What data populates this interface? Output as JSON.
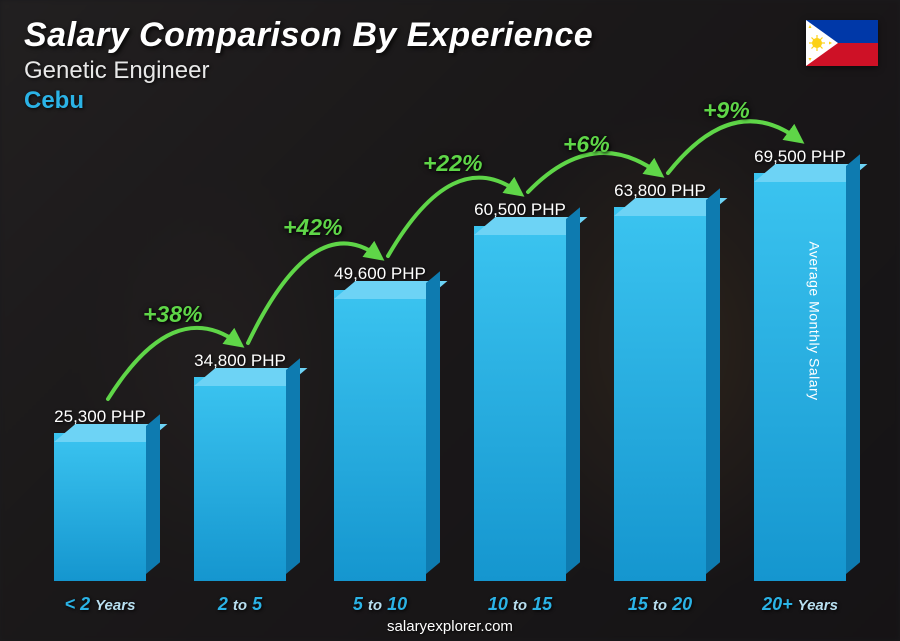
{
  "header": {
    "title": "Salary Comparison By Experience",
    "subtitle": "Genetic Engineer",
    "location": "Cebu"
  },
  "y_axis_label": "Average Monthly Salary",
  "footer": "salaryexplorer.com",
  "chart": {
    "type": "bar",
    "background_overlay": "rgba(15,15,20,0.55)",
    "bar_front_gradient": [
      "#3bc4f0",
      "#1596cf"
    ],
    "bar_top_color": "#6dd3f5",
    "bar_side_color": "#0e7bb0",
    "value_label_color": "#ffffff",
    "category_color": "#2bb3e6",
    "yaxis_max": 75000,
    "bars": [
      {
        "category_prefix": "< 2",
        "category_suffix": "Years",
        "value": 25300,
        "value_label": "25,300 PHP"
      },
      {
        "category_prefix": "2",
        "category_mid": "to",
        "category_suffix": "5",
        "value": 34800,
        "value_label": "34,800 PHP"
      },
      {
        "category_prefix": "5",
        "category_mid": "to",
        "category_suffix": "10",
        "value": 49600,
        "value_label": "49,600 PHP"
      },
      {
        "category_prefix": "10",
        "category_mid": "to",
        "category_suffix": "15",
        "value": 60500,
        "value_label": "60,500 PHP"
      },
      {
        "category_prefix": "15",
        "category_mid": "to",
        "category_suffix": "20",
        "value": 63800,
        "value_label": "63,800 PHP"
      },
      {
        "category_prefix": "20+",
        "category_suffix": "Years",
        "value": 69500,
        "value_label": "69,500 PHP"
      }
    ],
    "arcs": [
      {
        "from": 0,
        "to": 1,
        "pct": "+38%",
        "color": "#5fd648"
      },
      {
        "from": 1,
        "to": 2,
        "pct": "+42%",
        "color": "#5fd648"
      },
      {
        "from": 2,
        "to": 3,
        "pct": "+22%",
        "color": "#5fd648"
      },
      {
        "from": 3,
        "to": 4,
        "pct": "+6%",
        "color": "#5fd648"
      },
      {
        "from": 4,
        "to": 5,
        "pct": "+9%",
        "color": "#5fd648"
      }
    ]
  },
  "flag": {
    "blue": "#0038a8",
    "red": "#ce1126",
    "white": "#ffffff",
    "yellow": "#fcd116"
  }
}
